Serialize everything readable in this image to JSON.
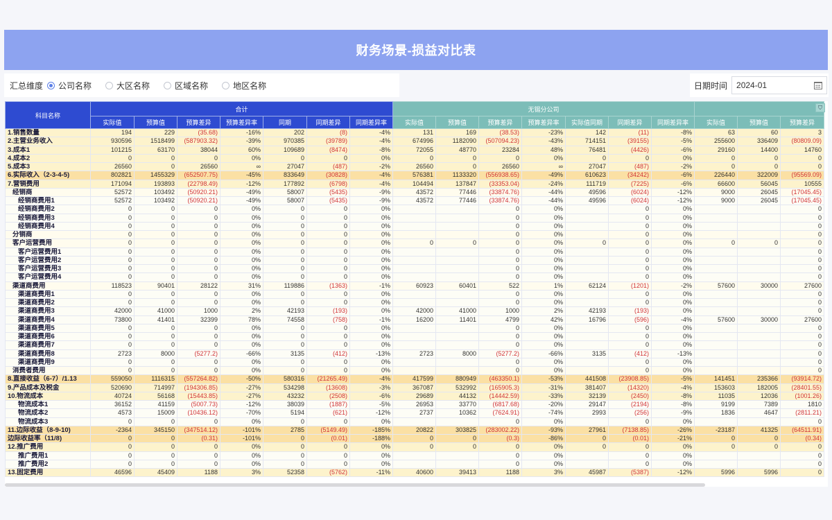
{
  "title": "财务场景-损益对比表",
  "filters": {
    "label": "汇总维度",
    "options": [
      {
        "label": "公司名称",
        "checked": true
      },
      {
        "label": "大区名称",
        "checked": false
      },
      {
        "label": "区域名称",
        "checked": false
      },
      {
        "label": "地区名称",
        "checked": false
      }
    ]
  },
  "date": {
    "label": "日期时间",
    "value": "2024-01",
    "icon": "calendar-icon"
  },
  "table": {
    "row_header": "科目名称",
    "groups": [
      {
        "name": "合计",
        "color": "#2e4bd1",
        "columns": [
          "实际值",
          "预算值",
          "预算差异",
          "预算差异率",
          "同期",
          "同期差异",
          "同期差异率"
        ]
      },
      {
        "name": "无锡分公司",
        "color": "#7cbdb8",
        "columns": [
          "实际值",
          "预算值",
          "预算差异",
          "预算差异率",
          "实际值同期",
          "同期差异",
          "同期差异率"
        ]
      },
      {
        "name": "",
        "color": "#7cbdb8",
        "columns": [
          "实际值",
          "预算值",
          "预算差异"
        ]
      }
    ],
    "filter_icon": "filter-icon",
    "rows": [
      {
        "name": "1.销售数量",
        "level": 0,
        "style": "top",
        "values": [
          "194",
          "229",
          "(35.68)",
          "-16%",
          "202",
          "(8)",
          "-4%",
          "131",
          "169",
          "(38.53)",
          "-23%",
          "142",
          "(11)",
          "-8%",
          "63",
          "60",
          "3"
        ]
      },
      {
        "name": "2.主营业务收入",
        "level": 0,
        "style": "top",
        "values": [
          "930596",
          "1518499",
          "(587903.32)",
          "-39%",
          "970385",
          "(39789)",
          "-4%",
          "674996",
          "1182090",
          "(507094.23)",
          "-43%",
          "714151",
          "(39155)",
          "-5%",
          "255600",
          "336409",
          "(80809.09)"
        ]
      },
      {
        "name": "3.成本1",
        "level": 0,
        "style": "top",
        "values": [
          "101215",
          "63170",
          "38044",
          "60%",
          "109689",
          "(8474)",
          "-8%",
          "72055",
          "48770",
          "23284",
          "48%",
          "76481",
          "(4426)",
          "-6%",
          "29160",
          "14400",
          "14760"
        ]
      },
      {
        "name": "4.成本2",
        "level": 0,
        "style": "top",
        "values": [
          "0",
          "0",
          "0",
          "0%",
          "0",
          "0",
          "0%",
          "0",
          "0",
          "0",
          "0%",
          "0",
          "0",
          "0%",
          "0",
          "0",
          "0"
        ]
      },
      {
        "name": "5.成本3",
        "level": 0,
        "style": "top",
        "values": [
          "26560",
          "0",
          "26560",
          "∞",
          "27047",
          "(487)",
          "-2%",
          "26560",
          "0",
          "26560",
          "∞",
          "27047",
          "(487)",
          "-2%",
          "0",
          "0",
          "0"
        ]
      },
      {
        "name": "6.实际收入（2-3-4-5)",
        "level": 0,
        "style": "key",
        "values": [
          "802821",
          "1455329",
          "(652507.75)",
          "-45%",
          "833649",
          "(30828)",
          "-4%",
          "576381",
          "1133320",
          "(556938.65)",
          "-49%",
          "610623",
          "(34242)",
          "-6%",
          "226440",
          "322009",
          "(95569.09)"
        ]
      },
      {
        "name": "7.营销费用",
        "level": 0,
        "style": "top",
        "values": [
          "171094",
          "193893",
          "(22798.49)",
          "-12%",
          "177892",
          "(6798)",
          "-4%",
          "104494",
          "137847",
          "(33353.04)",
          "-24%",
          "111719",
          "(7225)",
          "-6%",
          "66600",
          "56045",
          "10555"
        ]
      },
      {
        "name": "经销商",
        "level": 1,
        "style": "sub",
        "values": [
          "52572",
          "103492",
          "(50920.21)",
          "-49%",
          "58007",
          "(5435)",
          "-9%",
          "43572",
          "77446",
          "(33874.76)",
          "-44%",
          "49596",
          "(6024)",
          "-12%",
          "9000",
          "26045",
          "(17045.45)"
        ]
      },
      {
        "name": "经销商费用1",
        "level": 2,
        "style": "leaf",
        "values": [
          "52572",
          "103492",
          "(50920.21)",
          "-49%",
          "58007",
          "(5435)",
          "-9%",
          "43572",
          "77446",
          "(33874.76)",
          "-44%",
          "49596",
          "(6024)",
          "-12%",
          "9000",
          "26045",
          "(17045.45)"
        ]
      },
      {
        "name": "经销商费用2",
        "level": 2,
        "style": "leaf",
        "values": [
          "0",
          "0",
          "0",
          "0%",
          "0",
          "0",
          "0%",
          "",
          "",
          "0",
          "0%",
          "",
          "0",
          "0%",
          "",
          "",
          "0"
        ]
      },
      {
        "name": "经销商费用3",
        "level": 2,
        "style": "leaf",
        "values": [
          "0",
          "0",
          "0",
          "0%",
          "0",
          "0",
          "0%",
          "",
          "",
          "0",
          "0%",
          "",
          "0",
          "0%",
          "",
          "",
          "0"
        ]
      },
      {
        "name": "经销商费用4",
        "level": 2,
        "style": "leaf",
        "values": [
          "0",
          "0",
          "0",
          "0%",
          "0",
          "0",
          "0%",
          "",
          "",
          "0",
          "0%",
          "",
          "0",
          "0%",
          "",
          "",
          "0"
        ]
      },
      {
        "name": "分销商",
        "level": 1,
        "style": "sub",
        "values": [
          "0",
          "0",
          "0",
          "0%",
          "0",
          "0",
          "0%",
          "",
          "",
          "0",
          "0%",
          "",
          "0",
          "0%",
          "",
          "",
          "0"
        ]
      },
      {
        "name": "客户运营费用",
        "level": 1,
        "style": "sub",
        "values": [
          "0",
          "0",
          "0",
          "0%",
          "0",
          "0",
          "0%",
          "0",
          "0",
          "0",
          "0%",
          "0",
          "0",
          "0%",
          "0",
          "0",
          "0"
        ]
      },
      {
        "name": "客户运营费用1",
        "level": 2,
        "style": "leaf",
        "values": [
          "0",
          "0",
          "0",
          "0%",
          "0",
          "0",
          "0%",
          "",
          "",
          "0",
          "0%",
          "",
          "0",
          "0%",
          "",
          "",
          "0"
        ]
      },
      {
        "name": "客户运营费用2",
        "level": 2,
        "style": "leaf",
        "values": [
          "0",
          "0",
          "0",
          "0%",
          "0",
          "0",
          "0%",
          "",
          "",
          "0",
          "0%",
          "",
          "0",
          "0%",
          "",
          "",
          "0"
        ]
      },
      {
        "name": "客户运营费用3",
        "level": 2,
        "style": "leaf",
        "values": [
          "0",
          "0",
          "0",
          "0%",
          "0",
          "0",
          "0%",
          "",
          "",
          "0",
          "0%",
          "",
          "0",
          "0%",
          "",
          "",
          "0"
        ]
      },
      {
        "name": "客户运营费用4",
        "level": 2,
        "style": "leaf",
        "values": [
          "0",
          "0",
          "0",
          "0%",
          "0",
          "0",
          "0%",
          "",
          "",
          "0",
          "0%",
          "",
          "0",
          "0%",
          "",
          "",
          "0"
        ]
      },
      {
        "name": "渠道商费用",
        "level": 1,
        "style": "sub",
        "values": [
          "118523",
          "90401",
          "28122",
          "31%",
          "119886",
          "(1363)",
          "-1%",
          "60923",
          "60401",
          "522",
          "1%",
          "62124",
          "(1201)",
          "-2%",
          "57600",
          "30000",
          "27600"
        ]
      },
      {
        "name": "渠道商费用1",
        "level": 2,
        "style": "leaf",
        "values": [
          "0",
          "0",
          "0",
          "0%",
          "0",
          "0",
          "0%",
          "",
          "",
          "0",
          "0%",
          "",
          "0",
          "0%",
          "",
          "",
          "0"
        ]
      },
      {
        "name": "渠道商费用2",
        "level": 2,
        "style": "leaf",
        "values": [
          "0",
          "0",
          "0",
          "0%",
          "0",
          "0",
          "0%",
          "",
          "",
          "0",
          "0%",
          "",
          "0",
          "0%",
          "",
          "",
          "0"
        ]
      },
      {
        "name": "渠道商费用3",
        "level": 2,
        "style": "leaf",
        "values": [
          "42000",
          "41000",
          "1000",
          "2%",
          "42193",
          "(193)",
          "0%",
          "42000",
          "41000",
          "1000",
          "2%",
          "42193",
          "(193)",
          "0%",
          "",
          "",
          "0"
        ]
      },
      {
        "name": "渠道商费用4",
        "level": 2,
        "style": "leaf",
        "values": [
          "73800",
          "41401",
          "32399",
          "78%",
          "74558",
          "(758)",
          "-1%",
          "16200",
          "11401",
          "4799",
          "42%",
          "16796",
          "(596)",
          "-4%",
          "57600",
          "30000",
          "27600"
        ]
      },
      {
        "name": "渠道商费用5",
        "level": 2,
        "style": "leaf",
        "values": [
          "0",
          "0",
          "0",
          "0%",
          "0",
          "0",
          "0%",
          "",
          "",
          "0",
          "0%",
          "",
          "0",
          "0%",
          "",
          "",
          "0"
        ]
      },
      {
        "name": "渠道商费用6",
        "level": 2,
        "style": "leaf",
        "values": [
          "0",
          "0",
          "0",
          "0%",
          "0",
          "0",
          "0%",
          "",
          "",
          "0",
          "0%",
          "",
          "0",
          "0%",
          "",
          "",
          "0"
        ]
      },
      {
        "name": "渠道商费用7",
        "level": 2,
        "style": "leaf",
        "values": [
          "0",
          "0",
          "0",
          "0%",
          "0",
          "0",
          "0%",
          "",
          "",
          "0",
          "0%",
          "",
          "0",
          "0%",
          "",
          "",
          "0"
        ]
      },
      {
        "name": "渠道商费用8",
        "level": 2,
        "style": "leaf",
        "values": [
          "2723",
          "8000",
          "(5277.2)",
          "-66%",
          "3135",
          "(412)",
          "-13%",
          "2723",
          "8000",
          "(5277.2)",
          "-66%",
          "3135",
          "(412)",
          "-13%",
          "",
          "",
          "0"
        ]
      },
      {
        "name": "渠道商费用9",
        "level": 2,
        "style": "leaf",
        "values": [
          "0",
          "0",
          "0",
          "0%",
          "0",
          "0",
          "0%",
          "",
          "",
          "0",
          "0%",
          "",
          "0",
          "0%",
          "",
          "",
          "0"
        ]
      },
      {
        "name": "消费者费用",
        "level": 1,
        "style": "sub",
        "values": [
          "0",
          "0",
          "0",
          "0%",
          "0",
          "0",
          "0%",
          "",
          "",
          "0",
          "0%",
          "",
          "0",
          "0%",
          "",
          "",
          "0"
        ]
      },
      {
        "name": "8.直接收益（6-7）/1.13",
        "level": 0,
        "style": "key",
        "values": [
          "559050",
          "1116315",
          "(557264.82)",
          "-50%",
          "580316",
          "(21265.49)",
          "-4%",
          "417599",
          "880949",
          "(463350.1)",
          "-53%",
          "441508",
          "(23908.85)",
          "-5%",
          "141451",
          "235366",
          "(93914.72)"
        ]
      },
      {
        "name": "9.产品成本及税金",
        "level": 0,
        "style": "top",
        "values": [
          "520690",
          "714997",
          "(194306.85)",
          "-27%",
          "534298",
          "(13608)",
          "-3%",
          "367087",
          "532992",
          "(165905.3)",
          "-31%",
          "381407",
          "(14320)",
          "-4%",
          "153603",
          "182005",
          "(28401.55)"
        ]
      },
      {
        "name": "10.物流成本",
        "level": 0,
        "style": "top",
        "values": [
          "40724",
          "56168",
          "(15443.85)",
          "-27%",
          "43232",
          "(2508)",
          "-6%",
          "29689",
          "44132",
          "(14442.59)",
          "-33%",
          "32139",
          "(2450)",
          "-8%",
          "11035",
          "12036",
          "(1001.26)"
        ]
      },
      {
        "name": "物流成本1",
        "level": 2,
        "style": "leaf",
        "values": [
          "36152",
          "41159",
          "(5007.73)",
          "-12%",
          "38039",
          "(1887)",
          "-5%",
          "26953",
          "33770",
          "(6817.68)",
          "-20%",
          "29147",
          "(2194)",
          "-8%",
          "9199",
          "7389",
          "1810"
        ]
      },
      {
        "name": "物流成本2",
        "level": 2,
        "style": "leaf",
        "values": [
          "4573",
          "15009",
          "(10436.12)",
          "-70%",
          "5194",
          "(621)",
          "-12%",
          "2737",
          "10362",
          "(7624.91)",
          "-74%",
          "2993",
          "(256)",
          "-9%",
          "1836",
          "4647",
          "(2811.21)"
        ]
      },
      {
        "name": "物流成本3",
        "level": 2,
        "style": "leaf",
        "values": [
          "0",
          "0",
          "0",
          "0%",
          "0",
          "0",
          "0%",
          "",
          "",
          "0",
          "0%",
          "",
          "0",
          "0%",
          "",
          "",
          "0"
        ]
      },
      {
        "name": "11.边际收益（8-9-10)",
        "level": 0,
        "style": "key",
        "values": [
          "-2364",
          "345150",
          "(347514.12)",
          "-101%",
          "2785",
          "(5149.49)",
          "-185%",
          "20822",
          "303825",
          "(283002.22)",
          "-93%",
          "27961",
          "(7138.85)",
          "-26%",
          "-23187",
          "41325",
          "(64511.91)"
        ]
      },
      {
        "name": "边际收益率（11/8)",
        "level": 0,
        "style": "key",
        "values": [
          "0",
          "0",
          "(0.31)",
          "-101%",
          "0",
          "(0.01)",
          "-188%",
          "0",
          "0",
          "(0.3)",
          "-86%",
          "0",
          "(0.01)",
          "-21%",
          "0",
          "0",
          "(0.34)"
        ]
      },
      {
        "name": "12.推广费用",
        "level": 0,
        "style": "top",
        "values": [
          "0",
          "0",
          "0",
          "0%",
          "0",
          "0",
          "0%",
          "0",
          "0",
          "0",
          "0%",
          "0",
          "0",
          "0%",
          "0",
          "0",
          "0"
        ]
      },
      {
        "name": "推广费用1",
        "level": 2,
        "style": "leaf",
        "values": [
          "0",
          "0",
          "0",
          "0%",
          "0",
          "0",
          "0%",
          "",
          "",
          "0",
          "0%",
          "",
          "0",
          "0%",
          "",
          "",
          "0"
        ]
      },
      {
        "name": "推广费用2",
        "level": 2,
        "style": "leaf",
        "values": [
          "0",
          "0",
          "0",
          "0%",
          "0",
          "0",
          "0%",
          "",
          "",
          "0",
          "0%",
          "",
          "0",
          "0%",
          "",
          "",
          "0"
        ]
      },
      {
        "name": "13.固定费用",
        "level": 0,
        "style": "top",
        "values": [
          "46596",
          "45409",
          "1188",
          "3%",
          "52358",
          "(5762)",
          "-11%",
          "40600",
          "39413",
          "1188",
          "3%",
          "45987",
          "(5387)",
          "-12%",
          "5996",
          "5996",
          "0"
        ]
      }
    ]
  },
  "colors": {
    "header_blue": "#2e4bd1",
    "header_teal": "#7cbdb8",
    "banner": "#8da3f0",
    "negative": "#d0343a"
  }
}
